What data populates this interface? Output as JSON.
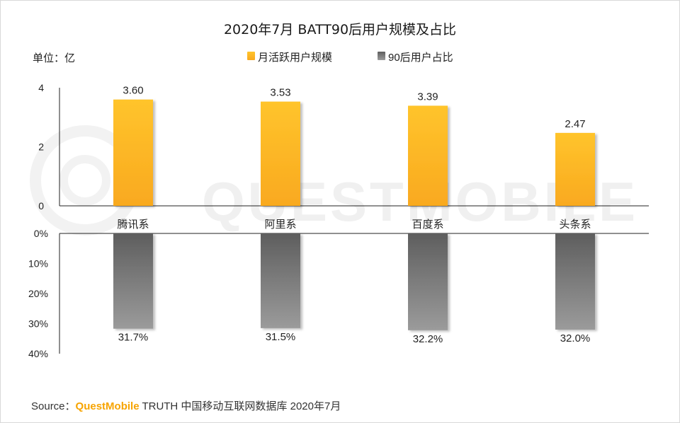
{
  "chart_data": {
    "type": "bar",
    "title": "2020年7月 BATT90后用户规模及占比",
    "unit_label": "单位：亿",
    "categories": [
      "腾讯系",
      "阿里系",
      "百度系",
      "头条系"
    ],
    "series": [
      {
        "name": "月活跃用户规模",
        "values": [
          3.6,
          3.53,
          3.39,
          2.47
        ],
        "value_labels": [
          "3.60",
          "3.53",
          "3.39",
          "2.47"
        ],
        "color": "#fbb829",
        "ylim": [
          0,
          4
        ],
        "ticks": [
          0,
          2,
          4
        ],
        "tick_labels": [
          "0",
          "2",
          "4"
        ]
      },
      {
        "name": "90后用户占比",
        "values": [
          31.7,
          31.5,
          32.2,
          32.0
        ],
        "value_labels": [
          "31.7%",
          "31.5%",
          "32.2%",
          "32.0%"
        ],
        "color": "#767676",
        "ylim": [
          0,
          40
        ],
        "inverted": true,
        "ticks": [
          0,
          10,
          20,
          30,
          40
        ],
        "tick_labels": [
          "0%",
          "10%",
          "20%",
          "30%",
          "40%"
        ]
      }
    ],
    "legend_position": "top-center",
    "grid": false
  },
  "watermark": "QUESTMOBILE",
  "source": {
    "prefix": "Source：",
    "brand": "QuestMobile",
    "text": " TRUTH 中国移动互联网数据库 2020年7月"
  },
  "colors": {
    "accent": "#f7a400",
    "bar_top": "#ffc42c",
    "bar_bottom": "#f9a91f",
    "gray_top": "#5f5f5f",
    "gray_bottom": "#9a9a9a"
  }
}
